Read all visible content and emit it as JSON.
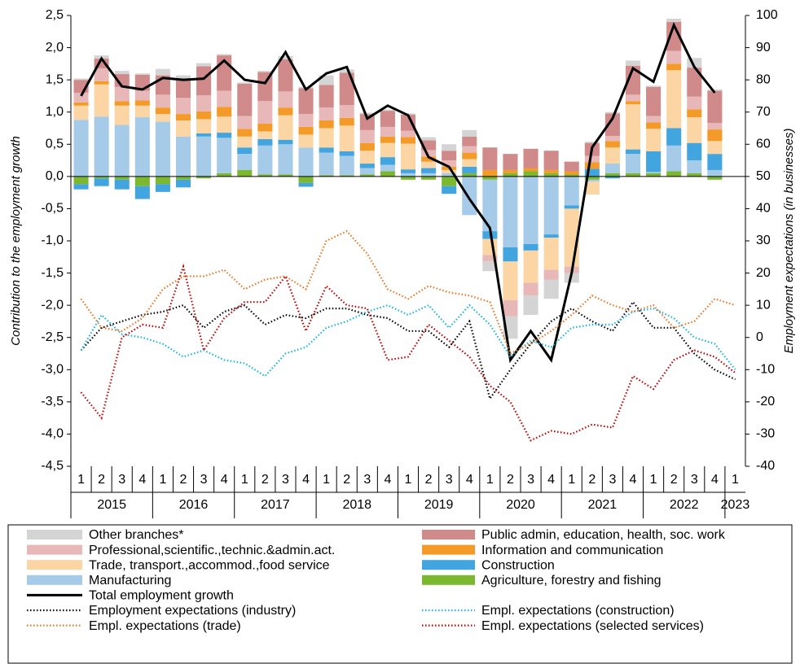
{
  "chart_data": {
    "type": "bar-line",
    "y_label": "Contribution to the employment growth",
    "y2_label": "Employment expectations (in businesses)",
    "categories": [
      "1",
      "2",
      "3",
      "4",
      "1",
      "2",
      "3",
      "4",
      "1",
      "2",
      "3",
      "4",
      "1",
      "2",
      "3",
      "4",
      "1",
      "2",
      "3",
      "4",
      "1",
      "2",
      "3",
      "4",
      "1",
      "2",
      "3",
      "4",
      "1",
      "2",
      "3",
      "4",
      "1"
    ],
    "year_labels": [
      "2015",
      "2016",
      "2017",
      "2018",
      "2019",
      "2020",
      "2021",
      "2022",
      "2023"
    ],
    "ylim": [
      -4.5,
      2.5
    ],
    "yticks": [
      {
        "value": 2.5,
        "label": "2,5"
      },
      {
        "value": 2,
        "label": "2,0"
      },
      {
        "value": 1.5,
        "label": "1,5"
      },
      {
        "value": 1,
        "label": "1,0"
      },
      {
        "value": 0.5,
        "label": "0,5"
      },
      {
        "value": 0,
        "label": "0,0"
      },
      {
        "value": -0.5,
        "label": "-0,5"
      },
      {
        "value": -1,
        "label": "-1,0"
      },
      {
        "value": -1.5,
        "label": "-1,5"
      },
      {
        "value": -2,
        "label": "-2,0"
      },
      {
        "value": -2.5,
        "label": "-2,5"
      },
      {
        "value": -3,
        "label": "-3,0"
      },
      {
        "value": -3.5,
        "label": "-3,5"
      },
      {
        "value": -4,
        "label": "-4,0"
      },
      {
        "value": -4.5,
        "label": "-4,5"
      }
    ],
    "y2lim": [
      -40,
      100
    ],
    "y2ticks": [
      100,
      90,
      80,
      70,
      60,
      50,
      40,
      30,
      20,
      10,
      0,
      -10,
      -20,
      -30,
      -40
    ],
    "series": [
      {
        "name": "Agriculture, forestry and fishing",
        "color": "#7cb82f",
        "kind": "bar",
        "values": [
          -0.12,
          -0.03,
          -0.05,
          -0.15,
          -0.12,
          -0.05,
          -0.03,
          0.05,
          0.1,
          0.03,
          0.03,
          -0.1,
          0.02,
          0.02,
          0.03,
          0.08,
          -0.05,
          -0.05,
          -0.15,
          0.05,
          -0.05,
          0.05,
          0.08,
          0.05,
          0.03,
          -0.05,
          0.05,
          0.05,
          0.05,
          0.08,
          0.05,
          -0.05,
          null
        ]
      },
      {
        "name": "Manufacturing",
        "color": "#a6cbe8",
        "kind": "bar",
        "values": [
          0.88,
          0.93,
          0.8,
          0.92,
          0.85,
          0.62,
          0.62,
          0.55,
          0.25,
          0.45,
          0.47,
          0.45,
          0.35,
          0.3,
          0.1,
          0.1,
          0.05,
          0.05,
          0.05,
          -0.6,
          -0.8,
          -1.1,
          -1.05,
          -0.9,
          -0.45,
          -0.03,
          0.15,
          0.3,
          0.02,
          0.4,
          0.2,
          0.1,
          null
        ]
      },
      {
        "name": "Construction",
        "color": "#43a5e0",
        "kind": "bar",
        "values": [
          -0.08,
          -0.12,
          -0.15,
          -0.2,
          -0.12,
          -0.12,
          0.05,
          0.08,
          0.1,
          0.1,
          0.07,
          -0.06,
          0.08,
          0.07,
          0.07,
          0.12,
          0.06,
          0.08,
          -0.12,
          0.1,
          -0.12,
          -0.22,
          -0.1,
          -0.05,
          -0.05,
          0.12,
          -0.03,
          0.07,
          0.32,
          0.27,
          0.27,
          0.25,
          null
        ]
      },
      {
        "name": "Trade, transport.,accommod.,food service",
        "color": "#fcd5a5",
        "kind": "bar",
        "values": [
          0.22,
          0.5,
          0.3,
          0.18,
          0.12,
          0.25,
          0.22,
          0.25,
          0.17,
          0.12,
          0.38,
          0.2,
          0.3,
          0.4,
          0.2,
          0.22,
          0.4,
          0.1,
          0.05,
          0.12,
          -0.25,
          -0.6,
          -0.5,
          -0.5,
          -0.9,
          -0.2,
          0.25,
          0.7,
          0.35,
          0.9,
          0.4,
          0.2,
          null
        ]
      },
      {
        "name": "Information and communication",
        "color": "#f39a28",
        "kind": "bar",
        "values": [
          0.05,
          0.05,
          0.07,
          0.08,
          0.1,
          0.1,
          0.12,
          0.15,
          0.12,
          0.12,
          0.12,
          0.12,
          0.12,
          0.12,
          0.12,
          0.1,
          0.1,
          0.08,
          0.05,
          0.1,
          0.1,
          0.05,
          0.05,
          0.05,
          0.05,
          0.1,
          0.1,
          0.05,
          0.1,
          0.1,
          0.12,
          0.18,
          null
        ]
      },
      {
        "name": "Professional,scientific.,technic.&admin.act.",
        "color": "#e8b8b8",
        "kind": "bar",
        "values": [
          0.15,
          0.2,
          0.22,
          0.15,
          0.2,
          0.25,
          0.25,
          0.25,
          0.2,
          0.35,
          0.25,
          0.2,
          0.2,
          0.2,
          0.2,
          0.15,
          0.1,
          0.1,
          0.1,
          0.1,
          -0.1,
          -0.25,
          -0.2,
          -0.15,
          -0.1,
          0.1,
          0.08,
          0.1,
          0.1,
          0.2,
          0.2,
          0.1,
          null
        ]
      },
      {
        "name": "Public admin, education, health, soc. work",
        "color": "#d08a8a",
        "kind": "bar",
        "values": [
          0.2,
          0.15,
          0.2,
          0.25,
          0.3,
          0.3,
          0.45,
          0.55,
          0.5,
          0.45,
          0.5,
          0.4,
          0.35,
          0.5,
          0.25,
          0.25,
          0.25,
          0.15,
          0.15,
          0.15,
          0.35,
          0.25,
          0.3,
          0.3,
          0.15,
          0.2,
          0.35,
          0.45,
          0.45,
          0.45,
          0.45,
          0.5,
          null
        ]
      },
      {
        "name": "Other branches*",
        "color": "#d4d4d4",
        "kind": "bar",
        "values": [
          0.02,
          0.05,
          0.05,
          0.02,
          0.1,
          0.05,
          0.05,
          0.02,
          0.02,
          0.02,
          0.05,
          0.02,
          0.15,
          0.05,
          0.02,
          0.02,
          0.02,
          0.05,
          0.1,
          0.1,
          -0.15,
          -0.35,
          -0.3,
          -0.3,
          -0.15,
          0.02,
          0.02,
          0.08,
          0.02,
          0.05,
          0.15,
          0.02,
          null
        ]
      },
      {
        "name": "Total employment growth",
        "color": "#000000",
        "kind": "line",
        "values": [
          1.25,
          1.83,
          1.4,
          1.35,
          1.53,
          1.5,
          1.52,
          1.8,
          1.5,
          1.45,
          1.93,
          1.35,
          1.6,
          1.7,
          0.9,
          1.1,
          0.95,
          0.3,
          0.15,
          -0.35,
          -0.8,
          -2.85,
          -2.4,
          -2.85,
          -1.5,
          0.45,
          0.9,
          1.68,
          1.47,
          2.35,
          1.7,
          1.3,
          null
        ]
      },
      {
        "name": "Employment expectations (industry)",
        "color": "#000000",
        "kind": "dotted",
        "axis": "y2",
        "values": [
          -4,
          3,
          5,
          7,
          8,
          10,
          3,
          8,
          10,
          4,
          7,
          6,
          9,
          9,
          7,
          6,
          2,
          2,
          -3,
          5,
          -19,
          -10,
          -2,
          5,
          9,
          5,
          2,
          11,
          3,
          3,
          -5,
          -10,
          -13
        ]
      },
      {
        "name": "Empl. expectations (construction)",
        "color": "#19b4e6",
        "kind": "dotted",
        "axis": "y2",
        "values": [
          -4,
          7,
          1,
          0,
          -2,
          -6,
          -4,
          -7,
          -8,
          -12,
          -5,
          -3,
          3,
          5,
          8,
          10,
          7,
          10,
          3,
          10,
          4,
          -6,
          -1,
          -3,
          3,
          4,
          4,
          8,
          9,
          6,
          0,
          -2,
          -10
        ]
      },
      {
        "name": "Empl. expectations (trade)",
        "color": "#e87722",
        "kind": "dotted",
        "axis": "y2",
        "values": [
          12,
          3,
          2,
          6,
          15,
          19,
          19,
          21,
          15,
          18,
          19,
          15,
          30,
          33,
          26,
          15,
          12,
          16,
          14,
          13,
          11,
          -5,
          -2,
          2,
          7,
          13,
          10,
          8,
          10,
          3,
          5,
          12,
          10
        ]
      },
      {
        "name": "Empl. expectations (selected services)",
        "color": "#c00000",
        "kind": "dotted",
        "axis": "y2",
        "values": [
          -17,
          -25,
          0,
          4,
          3,
          22,
          -4,
          6,
          11,
          11,
          19,
          2,
          16,
          10,
          9,
          -7,
          -6,
          4,
          -1,
          -6,
          -15,
          -20,
          -32,
          -29,
          -30,
          -27,
          -28,
          -12,
          -16,
          -7,
          -4,
          -6,
          -11
        ]
      }
    ]
  }
}
